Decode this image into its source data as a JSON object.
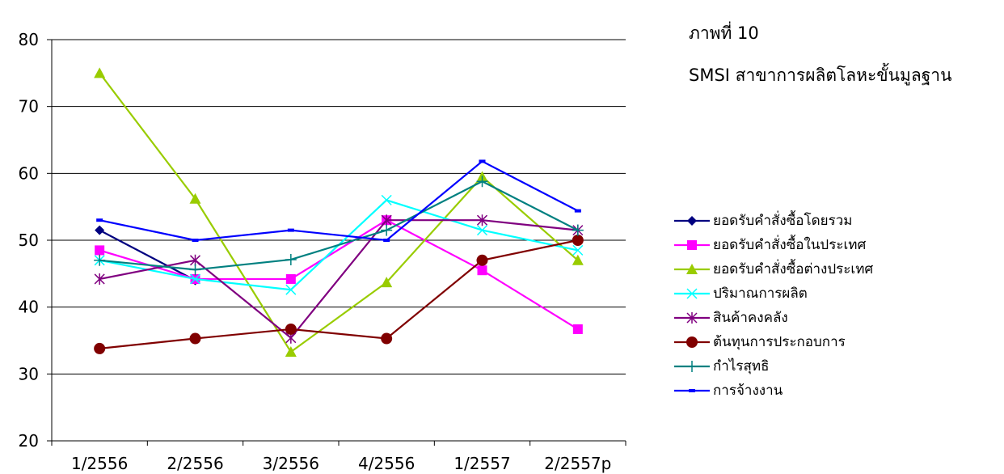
{
  "chart_data": {
    "type": "line",
    "title": "ภาพที่ 10",
    "subtitle": "SMSI สาขาการผลิตโลหะขั้นมูลฐาน",
    "xlabel": "",
    "ylabel": "",
    "categories": [
      "1/2556",
      "2/2556",
      "3/2556",
      "4/2556",
      "1/2557",
      "2/2557p"
    ],
    "ylim": [
      20,
      80
    ],
    "yticks": [
      20,
      30,
      40,
      50,
      60,
      70,
      80
    ],
    "grid": true,
    "legend_position": "right",
    "series": [
      {
        "name": "ยอดรับคำสั่งซื้อโดยรวม",
        "color": "#000080",
        "marker": "diamond",
        "values": [
          51.5,
          44.0,
          null,
          null,
          null,
          null
        ]
      },
      {
        "name": "ยอดรับคำสั่งซื้อในประเทศ",
        "color": "#ff00ff",
        "marker": "square",
        "values": [
          48.5,
          44.2,
          44.2,
          53.0,
          45.5,
          36.7
        ]
      },
      {
        "name": "ยอดรับคำสั่งซื้อต่างประเทศ",
        "color": "#99cc00",
        "marker": "triangle",
        "values": [
          75.0,
          56.2,
          33.3,
          43.7,
          59.5,
          47.0
        ]
      },
      {
        "name": "ปริมาณการผลิต",
        "color": "#00ffff",
        "marker": "x",
        "values": [
          47.0,
          44.2,
          42.6,
          56.0,
          51.5,
          48.5
        ]
      },
      {
        "name": "สินค้าคงคลัง",
        "color": "#800080",
        "marker": "asterisk",
        "values": [
          44.2,
          47.0,
          35.4,
          53.0,
          53.0,
          51.5
        ]
      },
      {
        "name": "ต้นทุนการประกอบการ",
        "color": "#800000",
        "marker": "circle",
        "values": [
          33.8,
          35.3,
          36.7,
          35.3,
          47.0,
          50.0
        ]
      },
      {
        "name": "กำไรสุทธิ",
        "color": "#008080",
        "marker": "plus",
        "values": [
          47.0,
          45.6,
          47.1,
          51.5,
          58.8,
          51.5
        ]
      },
      {
        "name": "การจ้างงาน",
        "color": "#0000ff",
        "marker": "dash",
        "values": [
          53.0,
          50.0,
          51.5,
          50.0,
          61.8,
          54.4
        ]
      }
    ]
  }
}
